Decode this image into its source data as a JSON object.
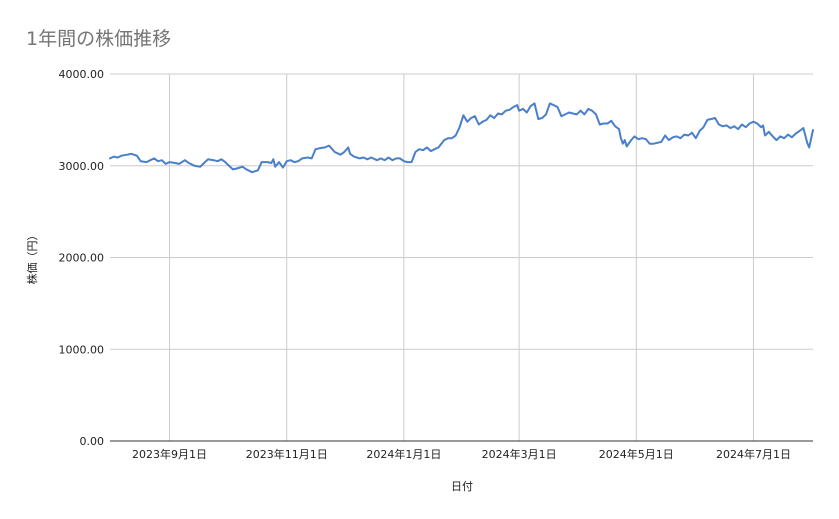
{
  "chart_data": {
    "type": "line",
    "title": "1年間の株価推移",
    "xlabel": "日付",
    "ylabel": "株価（円）",
    "ylim": [
      0,
      4000
    ],
    "y_ticks": [
      "0.00",
      "1000.00",
      "2000.00",
      "3000.00",
      "4000.00"
    ],
    "x_range": [
      "2023-08-01",
      "2024-08-01"
    ],
    "x_ticks": [
      {
        "date": "2023-09-01",
        "label": "2023年9月1日"
      },
      {
        "date": "2023-11-01",
        "label": "2023年11月1日"
      },
      {
        "date": "2024-01-01",
        "label": "2024年1月1日"
      },
      {
        "date": "2024-03-01",
        "label": "2024年3月1日"
      },
      {
        "date": "2024-05-01",
        "label": "2024年5月1日"
      },
      {
        "date": "2024-07-01",
        "label": "2024年7月1日"
      }
    ],
    "grid": true,
    "legend": "none",
    "colors": {
      "line": "#4a7fcb",
      "grid": "#cccccc",
      "axis": "#333333"
    },
    "series": [
      {
        "points": [
          [
            "2023-08-01",
            3080
          ],
          [
            "2023-08-03",
            3100
          ],
          [
            "2023-08-05",
            3090
          ],
          [
            "2023-08-07",
            3110
          ],
          [
            "2023-08-10",
            3120
          ],
          [
            "2023-08-12",
            3130
          ],
          [
            "2023-08-15",
            3110
          ],
          [
            "2023-08-17",
            3050
          ],
          [
            "2023-08-20",
            3040
          ],
          [
            "2023-08-22",
            3060
          ],
          [
            "2023-08-24",
            3080
          ],
          [
            "2023-08-26",
            3050
          ],
          [
            "2023-08-28",
            3060
          ],
          [
            "2023-08-30",
            3020
          ],
          [
            "2023-09-01",
            3040
          ],
          [
            "2023-09-04",
            3030
          ],
          [
            "2023-09-06",
            3020
          ],
          [
            "2023-09-09",
            3060
          ],
          [
            "2023-09-11",
            3030
          ],
          [
            "2023-09-14",
            3000
          ],
          [
            "2023-09-17",
            2990
          ],
          [
            "2023-09-19",
            3030
          ],
          [
            "2023-09-21",
            3070
          ],
          [
            "2023-09-24",
            3060
          ],
          [
            "2023-09-26",
            3050
          ],
          [
            "2023-09-28",
            3070
          ],
          [
            "2023-09-30",
            3040
          ],
          [
            "2023-10-02",
            3000
          ],
          [
            "2023-10-04",
            2960
          ],
          [
            "2023-10-06",
            2970
          ],
          [
            "2023-10-09",
            2990
          ],
          [
            "2023-10-11",
            2960
          ],
          [
            "2023-10-14",
            2930
          ],
          [
            "2023-10-17",
            2950
          ],
          [
            "2023-10-19",
            3040
          ],
          [
            "2023-10-22",
            3040
          ],
          [
            "2023-10-24",
            3030
          ],
          [
            "2023-10-25",
            3070
          ],
          [
            "2023-10-26",
            2990
          ],
          [
            "2023-10-28",
            3040
          ],
          [
            "2023-10-30",
            2980
          ],
          [
            "2023-11-01",
            3050
          ],
          [
            "2023-11-03",
            3060
          ],
          [
            "2023-11-05",
            3040
          ],
          [
            "2023-11-07",
            3050
          ],
          [
            "2023-11-09",
            3080
          ],
          [
            "2023-11-12",
            3090
          ],
          [
            "2023-11-14",
            3080
          ],
          [
            "2023-11-16",
            3180
          ],
          [
            "2023-11-18",
            3190
          ],
          [
            "2023-11-21",
            3200
          ],
          [
            "2023-11-23",
            3220
          ],
          [
            "2023-11-26",
            3150
          ],
          [
            "2023-11-29",
            3120
          ],
          [
            "2023-12-01",
            3150
          ],
          [
            "2023-12-03",
            3200
          ],
          [
            "2023-12-04",
            3130
          ],
          [
            "2023-12-06",
            3100
          ],
          [
            "2023-12-09",
            3080
          ],
          [
            "2023-12-11",
            3090
          ],
          [
            "2023-12-13",
            3070
          ],
          [
            "2023-12-15",
            3090
          ],
          [
            "2023-12-18",
            3060
          ],
          [
            "2023-12-20",
            3080
          ],
          [
            "2023-12-22",
            3060
          ],
          [
            "2023-12-24",
            3090
          ],
          [
            "2023-12-26",
            3060
          ],
          [
            "2023-12-28",
            3080
          ],
          [
            "2023-12-30",
            3080
          ],
          [
            "2024-01-01",
            3050
          ],
          [
            "2024-01-03",
            3040
          ],
          [
            "2024-01-05",
            3040
          ],
          [
            "2024-01-07",
            3150
          ],
          [
            "2024-01-09",
            3180
          ],
          [
            "2024-01-11",
            3170
          ],
          [
            "2024-01-13",
            3200
          ],
          [
            "2024-01-15",
            3160
          ],
          [
            "2024-01-17",
            3180
          ],
          [
            "2024-01-19",
            3200
          ],
          [
            "2024-01-22",
            3280
          ],
          [
            "2024-01-24",
            3300
          ],
          [
            "2024-01-26",
            3300
          ],
          [
            "2024-01-28",
            3330
          ],
          [
            "2024-01-30",
            3420
          ],
          [
            "2024-02-01",
            3550
          ],
          [
            "2024-02-03",
            3480
          ],
          [
            "2024-02-05",
            3520
          ],
          [
            "2024-02-07",
            3540
          ],
          [
            "2024-02-09",
            3450
          ],
          [
            "2024-02-11",
            3480
          ],
          [
            "2024-02-13",
            3500
          ],
          [
            "2024-02-15",
            3550
          ],
          [
            "2024-02-17",
            3520
          ],
          [
            "2024-02-19",
            3570
          ],
          [
            "2024-02-21",
            3560
          ],
          [
            "2024-02-23",
            3600
          ],
          [
            "2024-02-25",
            3610
          ],
          [
            "2024-02-27",
            3640
          ],
          [
            "2024-02-29",
            3660
          ],
          [
            "2024-03-01",
            3600
          ],
          [
            "2024-03-03",
            3620
          ],
          [
            "2024-03-05",
            3580
          ],
          [
            "2024-03-07",
            3650
          ],
          [
            "2024-03-09",
            3680
          ],
          [
            "2024-03-11",
            3510
          ],
          [
            "2024-03-13",
            3520
          ],
          [
            "2024-03-15",
            3560
          ],
          [
            "2024-03-17",
            3680
          ],
          [
            "2024-03-19",
            3660
          ],
          [
            "2024-03-21",
            3640
          ],
          [
            "2024-03-23",
            3540
          ],
          [
            "2024-03-25",
            3560
          ],
          [
            "2024-03-27",
            3580
          ],
          [
            "2024-03-29",
            3570
          ],
          [
            "2024-03-31",
            3560
          ],
          [
            "2024-04-02",
            3600
          ],
          [
            "2024-04-04",
            3560
          ],
          [
            "2024-04-06",
            3620
          ],
          [
            "2024-04-08",
            3600
          ],
          [
            "2024-04-10",
            3560
          ],
          [
            "2024-04-12",
            3450
          ],
          [
            "2024-04-14",
            3460
          ],
          [
            "2024-04-16",
            3460
          ],
          [
            "2024-04-18",
            3490
          ],
          [
            "2024-04-20",
            3430
          ],
          [
            "2024-04-22",
            3400
          ],
          [
            "2024-04-23",
            3300
          ],
          [
            "2024-04-24",
            3240
          ],
          [
            "2024-04-25",
            3280
          ],
          [
            "2024-04-26",
            3210
          ],
          [
            "2024-04-28",
            3270
          ],
          [
            "2024-04-30",
            3320
          ],
          [
            "2024-05-02",
            3290
          ],
          [
            "2024-05-04",
            3300
          ],
          [
            "2024-05-06",
            3290
          ],
          [
            "2024-05-08",
            3240
          ],
          [
            "2024-05-10",
            3240
          ],
          [
            "2024-05-12",
            3250
          ],
          [
            "2024-05-14",
            3260
          ],
          [
            "2024-05-16",
            3330
          ],
          [
            "2024-05-18",
            3280
          ],
          [
            "2024-05-20",
            3310
          ],
          [
            "2024-05-22",
            3320
          ],
          [
            "2024-05-24",
            3300
          ],
          [
            "2024-05-26",
            3340
          ],
          [
            "2024-05-28",
            3330
          ],
          [
            "2024-05-30",
            3360
          ],
          [
            "2024-06-01",
            3300
          ],
          [
            "2024-06-03",
            3380
          ],
          [
            "2024-06-05",
            3420
          ],
          [
            "2024-06-07",
            3500
          ],
          [
            "2024-06-09",
            3510
          ],
          [
            "2024-06-11",
            3520
          ],
          [
            "2024-06-13",
            3450
          ],
          [
            "2024-06-15",
            3430
          ],
          [
            "2024-06-17",
            3440
          ],
          [
            "2024-06-19",
            3410
          ],
          [
            "2024-06-21",
            3430
          ],
          [
            "2024-06-23",
            3400
          ],
          [
            "2024-06-25",
            3450
          ],
          [
            "2024-06-27",
            3420
          ],
          [
            "2024-06-29",
            3460
          ],
          [
            "2024-07-01",
            3480
          ],
          [
            "2024-07-03",
            3460
          ],
          [
            "2024-07-05",
            3420
          ],
          [
            "2024-07-06",
            3440
          ],
          [
            "2024-07-07",
            3330
          ],
          [
            "2024-07-09",
            3370
          ],
          [
            "2024-07-11",
            3320
          ],
          [
            "2024-07-13",
            3280
          ],
          [
            "2024-07-15",
            3320
          ],
          [
            "2024-07-17",
            3300
          ],
          [
            "2024-07-19",
            3340
          ],
          [
            "2024-07-21",
            3310
          ],
          [
            "2024-07-23",
            3350
          ],
          [
            "2024-07-25",
            3380
          ],
          [
            "2024-07-27",
            3410
          ],
          [
            "2024-07-29",
            3250
          ],
          [
            "2024-07-30",
            3200
          ],
          [
            "2024-08-01",
            3390
          ]
        ]
      }
    ]
  }
}
